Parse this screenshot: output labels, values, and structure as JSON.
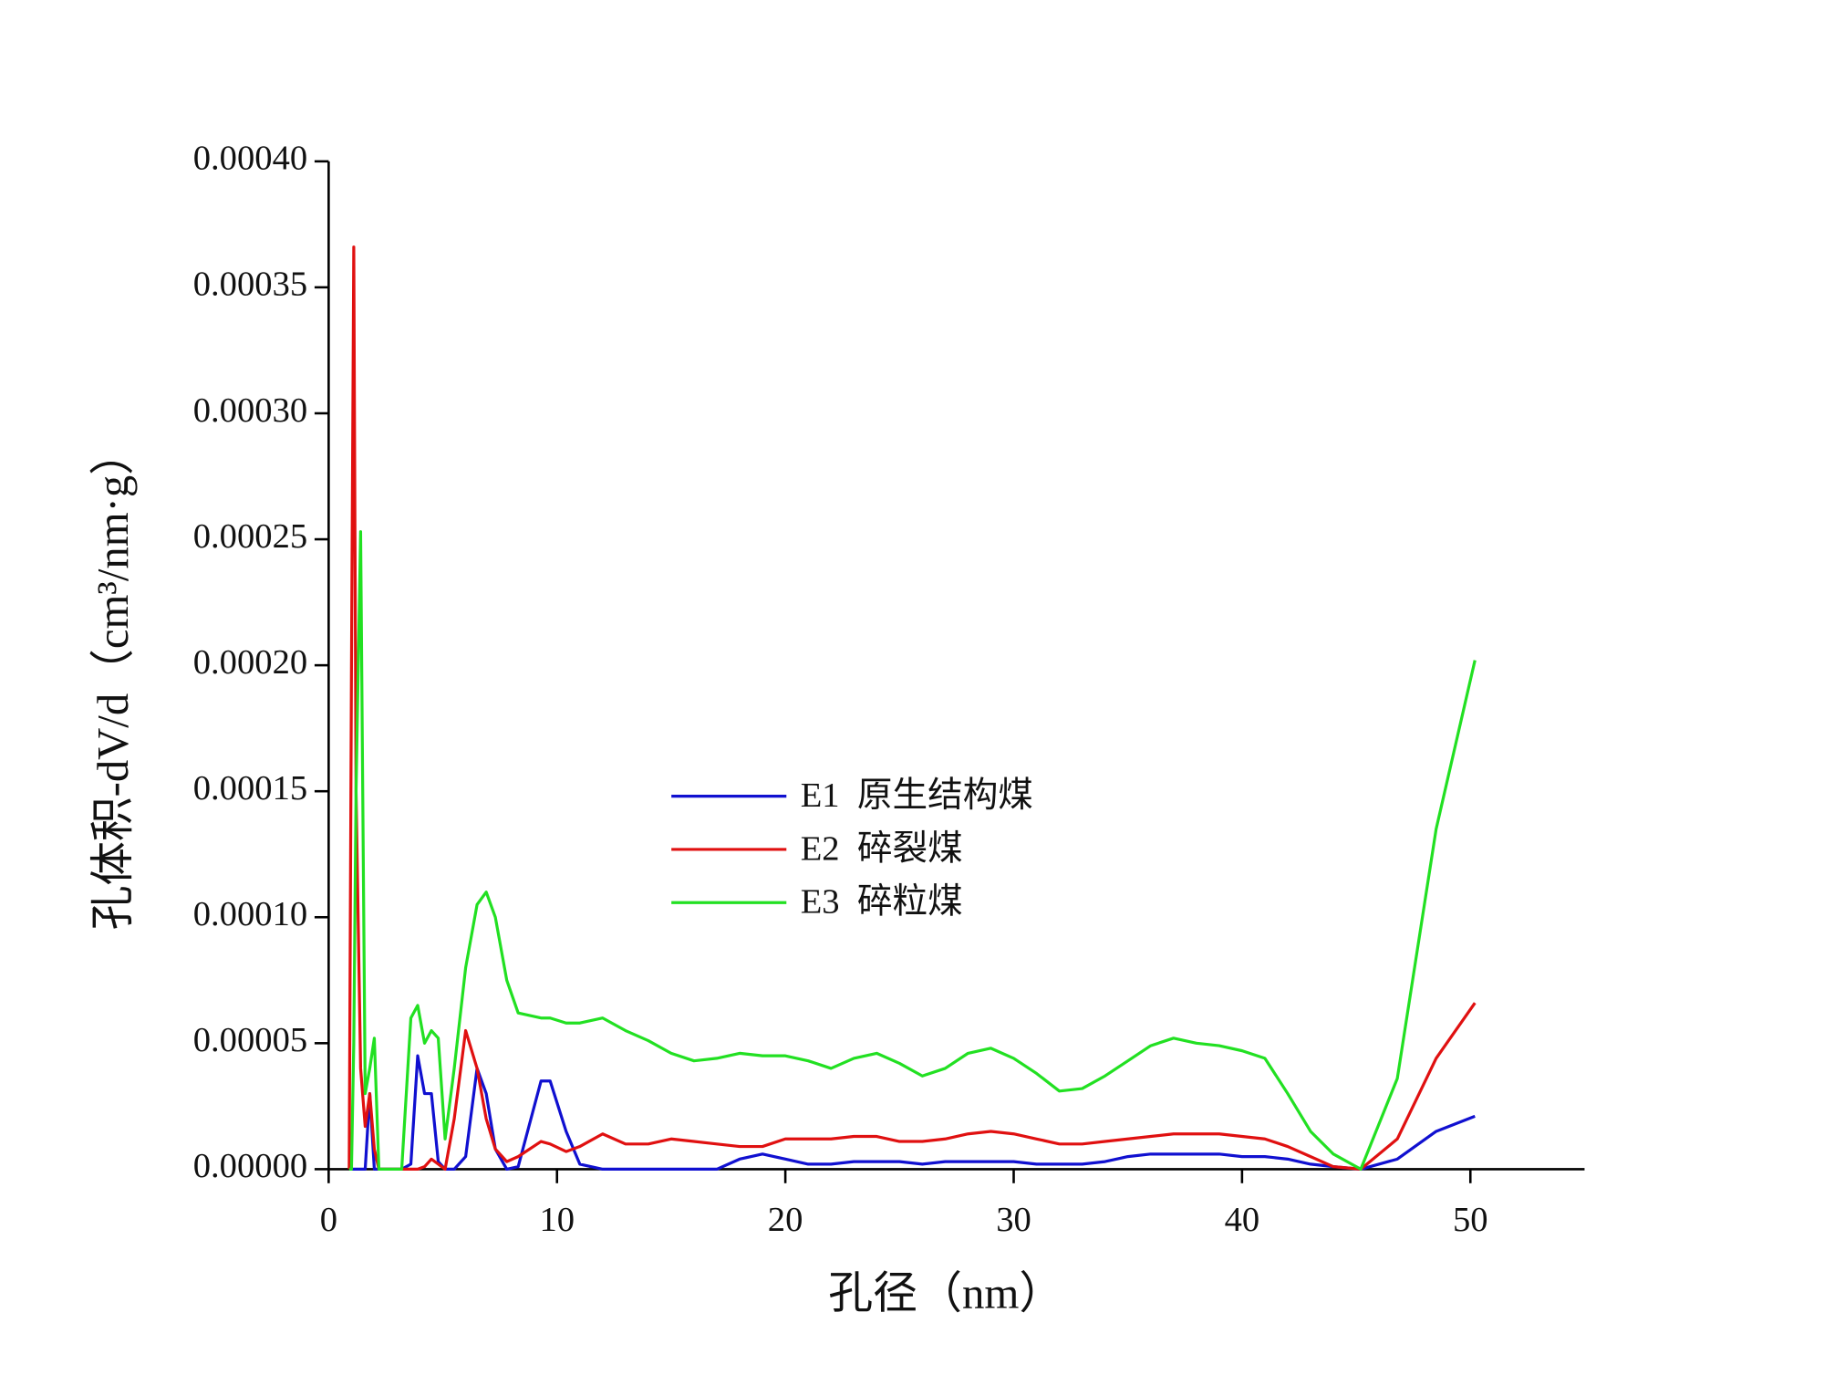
{
  "chart_data": {
    "type": "line",
    "xlabel": "孔径（nm）",
    "ylabel": "孔体积-dV/d（cm³/nm·g）",
    "xlim": [
      0,
      55
    ],
    "xticks": [
      0,
      10,
      20,
      30,
      40,
      50
    ],
    "ylim": [
      0,
      0.0004
    ],
    "yticks": [
      {
        "value": 0,
        "label": "0.00000"
      },
      {
        "value": 5e-05,
        "label": "0.00005"
      },
      {
        "value": 0.0001,
        "label": "0.00010"
      },
      {
        "value": 0.00015,
        "label": "0.00015"
      },
      {
        "value": 0.0002,
        "label": "0.00020"
      },
      {
        "value": 0.00025,
        "label": "0.00025"
      },
      {
        "value": 0.0003,
        "label": "0.00030"
      },
      {
        "value": 0.00035,
        "label": "0.00035"
      },
      {
        "value": 0.0004,
        "label": "0.00040"
      }
    ],
    "grid": false,
    "legend": "center",
    "x": [
      0.9,
      1.0,
      1.1,
      1.2,
      1.4,
      1.6,
      1.8,
      2.0,
      2.2,
      3.2,
      3.6,
      3.9,
      4.2,
      4.5,
      4.8,
      5.1,
      5.5,
      6.0,
      6.5,
      6.9,
      7.3,
      7.8,
      8.3,
      9.3,
      9.7,
      10.4,
      11.0,
      12,
      13,
      14,
      15,
      16,
      17,
      18,
      19,
      20,
      21,
      22,
      23,
      24,
      25,
      26,
      27,
      28,
      29,
      30,
      31,
      32,
      33,
      34,
      35,
      36,
      37,
      38,
      39,
      40,
      41,
      42,
      43,
      44,
      45.2,
      46.8,
      48.5,
      50.2
    ],
    "series": [
      {
        "name": "E1  原生结构煤",
        "color": "#1010d0",
        "values": [
          0,
          0,
          0,
          0,
          0,
          0,
          3e-05,
          0,
          0,
          0,
          2e-06,
          4.5e-05,
          3e-05,
          3e-05,
          3e-06,
          0,
          0,
          5e-06,
          4e-05,
          3e-05,
          8e-06,
          0,
          1e-06,
          3.5e-05,
          3.5e-05,
          1.5e-05,
          2e-06,
          0,
          0,
          0,
          0,
          0,
          0,
          4e-06,
          6e-06,
          4e-06,
          2e-06,
          2e-06,
          3e-06,
          3e-06,
          3e-06,
          2e-06,
          3e-06,
          3e-06,
          3e-06,
          3e-06,
          2e-06,
          2e-06,
          2e-06,
          3e-06,
          5e-06,
          6e-06,
          6e-06,
          6e-06,
          6e-06,
          5e-06,
          5e-06,
          4e-06,
          2e-06,
          1e-06,
          0,
          4e-06,
          1.5e-05,
          2.1e-05
        ]
      },
      {
        "name": "E2  碎裂煤",
        "color": "#e01010",
        "values": [
          0,
          0.0002,
          0.000366,
          0.00015,
          4e-05,
          1.7e-05,
          3e-05,
          8e-06,
          0,
          0,
          0,
          0,
          1e-06,
          4e-06,
          2e-06,
          0,
          2e-05,
          5.5e-05,
          4e-05,
          2e-05,
          8e-06,
          3e-06,
          5e-06,
          1.1e-05,
          1e-05,
          7e-06,
          9e-06,
          1.4e-05,
          1e-05,
          1e-05,
          1.2e-05,
          1.1e-05,
          1e-05,
          9e-06,
          9e-06,
          1.2e-05,
          1.2e-05,
          1.2e-05,
          1.3e-05,
          1.3e-05,
          1.1e-05,
          1.1e-05,
          1.2e-05,
          1.4e-05,
          1.5e-05,
          1.4e-05,
          1.2e-05,
          1e-05,
          1e-05,
          1.1e-05,
          1.2e-05,
          1.3e-05,
          1.4e-05,
          1.4e-05,
          1.4e-05,
          1.3e-05,
          1.2e-05,
          9e-06,
          5e-06,
          1e-06,
          0,
          1.2e-05,
          4.4e-05,
          6.6e-05
        ]
      },
      {
        "name": "E3  碎粒煤",
        "color": "#22e022",
        "values": [
          0,
          0,
          5e-05,
          0.00015,
          0.000253,
          3e-05,
          4e-05,
          5.2e-05,
          0,
          0,
          6e-05,
          6.5e-05,
          5e-05,
          5.5e-05,
          5.2e-05,
          1.2e-05,
          4e-05,
          8e-05,
          0.000105,
          0.00011,
          0.0001,
          7.5e-05,
          6.2e-05,
          6e-05,
          6e-05,
          5.8e-05,
          5.8e-05,
          6e-05,
          5.5e-05,
          5.1e-05,
          4.6e-05,
          4.3e-05,
          4.4e-05,
          4.6e-05,
          4.5e-05,
          4.5e-05,
          4.3e-05,
          4e-05,
          4.4e-05,
          4.6e-05,
          4.2e-05,
          3.7e-05,
          4e-05,
          4.6e-05,
          4.8e-05,
          4.4e-05,
          3.8e-05,
          3.1e-05,
          3.2e-05,
          3.7e-05,
          4.3e-05,
          4.9e-05,
          5.2e-05,
          5e-05,
          4.9e-05,
          4.7e-05,
          4.4e-05,
          3e-05,
          1.5e-05,
          6e-06,
          0,
          3.6e-05,
          0.000135,
          0.000202
        ]
      }
    ]
  }
}
